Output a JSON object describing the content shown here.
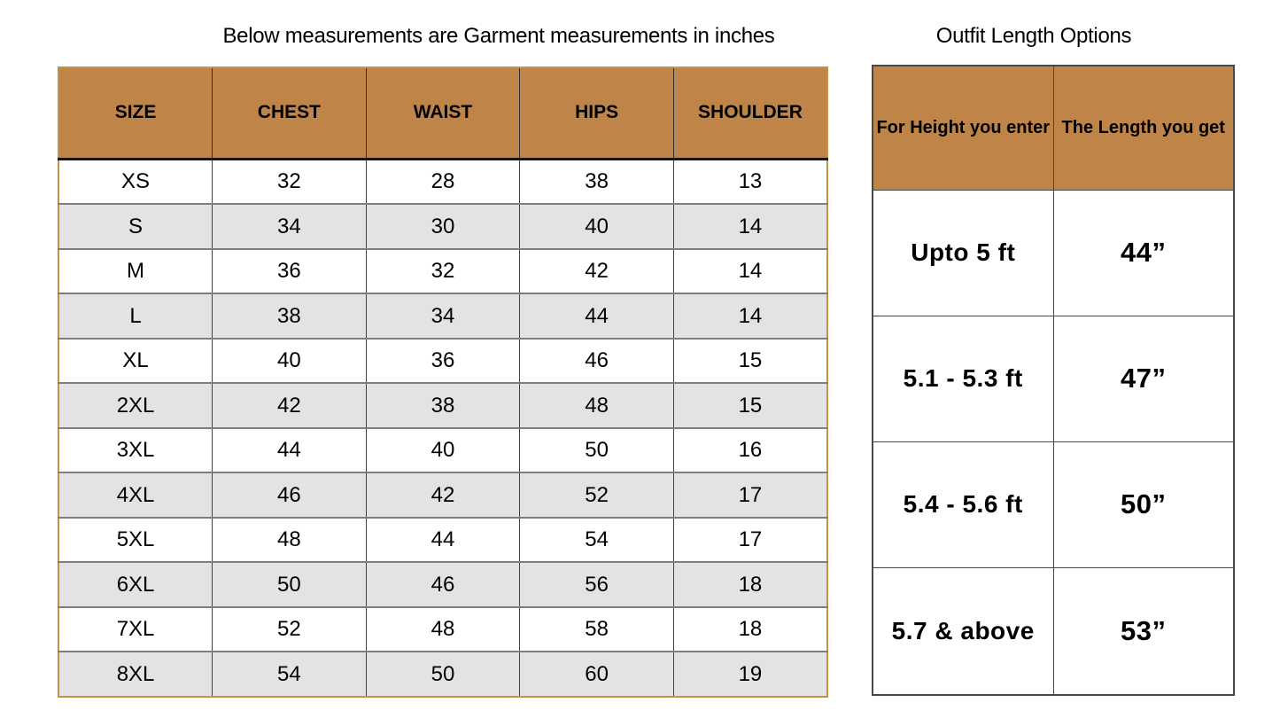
{
  "left_section_title": "Below measurements are Garment measurements in inches",
  "right_section_title": "Outfit Length Options",
  "chart_data": [
    {
      "type": "table",
      "title": "Below measurements are Garment measurements in inches",
      "unit": "inches",
      "columns": [
        "SIZE",
        "CHEST",
        "WAIST",
        "HIPS",
        "SHOULDER"
      ],
      "rows": [
        [
          "XS",
          "32",
          "28",
          "38",
          "13"
        ],
        [
          "S",
          "34",
          "30",
          "40",
          "14"
        ],
        [
          "M",
          "36",
          "32",
          "42",
          "14"
        ],
        [
          "L",
          "38",
          "34",
          "44",
          "14"
        ],
        [
          "XL",
          "40",
          "36",
          "46",
          "15"
        ],
        [
          "2XL",
          "42",
          "38",
          "48",
          "15"
        ],
        [
          "3XL",
          "44",
          "40",
          "50",
          "16"
        ],
        [
          "4XL",
          "46",
          "42",
          "52",
          "17"
        ],
        [
          "5XL",
          "48",
          "44",
          "54",
          "17"
        ],
        [
          "6XL",
          "50",
          "46",
          "56",
          "18"
        ],
        [
          "7XL",
          "52",
          "48",
          "58",
          "18"
        ],
        [
          "8XL",
          "54",
          "50",
          "60",
          "19"
        ]
      ]
    },
    {
      "type": "table",
      "title": "Outfit Length Options",
      "columns": [
        "For Height you enter",
        "The Length you get"
      ],
      "rows": [
        [
          "Upto 5 ft",
          "44”"
        ],
        [
          "5.1 - 5.3 ft",
          "47”"
        ],
        [
          "5.4 - 5.6 ft",
          "50”"
        ],
        [
          "5.7 & above",
          "53”"
        ]
      ]
    }
  ],
  "colors": {
    "header_brown": "#bf8548",
    "left_table_outer_border": "#c69344",
    "alt_row_gray": "#e3e3e5",
    "grid_dark_line": "#474747",
    "row_separator_gray": "#7e7e7e",
    "header_underline_black": "#151515",
    "background": "#ffffff",
    "text": "#000000"
  }
}
